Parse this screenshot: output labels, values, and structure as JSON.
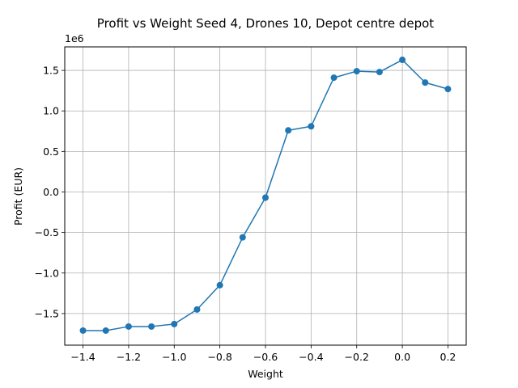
{
  "chart_data": {
    "type": "line",
    "title": "Profit vs Weight Seed 4, Drones 10, Depot centre depot",
    "xlabel": "Weight",
    "ylabel": "Profit (EUR)",
    "y_offset_label": "1e6",
    "xlim": [
      -1.48,
      0.28
    ],
    "ylim": [
      -1.89,
      1.79
    ],
    "x_ticks": [
      -1.4,
      -1.2,
      -1.0,
      -0.8,
      -0.6,
      -0.4,
      -0.2,
      0.0,
      0.2
    ],
    "x_tick_labels": [
      "−1.4",
      "−1.2",
      "−1.0",
      "−0.8",
      "−0.6",
      "−0.4",
      "−0.2",
      "0.0",
      "0.2"
    ],
    "y_ticks": [
      -1.5,
      -1.0,
      -0.5,
      0.0,
      0.5,
      1.0,
      1.5
    ],
    "y_tick_labels": [
      "−1.5",
      "−1.0",
      "−0.5",
      "0.0",
      "0.5",
      "1.0",
      "1.5"
    ],
    "grid": true,
    "series": [
      {
        "color": "#1f77b4",
        "marker": "circle",
        "x": [
          -1.4,
          -1.3,
          -1.2,
          -1.1,
          -1.0,
          -0.9,
          -0.8,
          -0.7,
          -0.6,
          -0.5,
          -0.4,
          -0.3,
          -0.2,
          -0.1,
          0.0,
          0.1,
          0.2
        ],
        "y": [
          -1.71,
          -1.71,
          -1.66,
          -1.66,
          -1.63,
          -1.45,
          -1.15,
          -0.56,
          -0.07,
          0.76,
          0.81,
          1.41,
          1.49,
          1.48,
          1.63,
          1.35,
          1.27
        ]
      }
    ]
  }
}
